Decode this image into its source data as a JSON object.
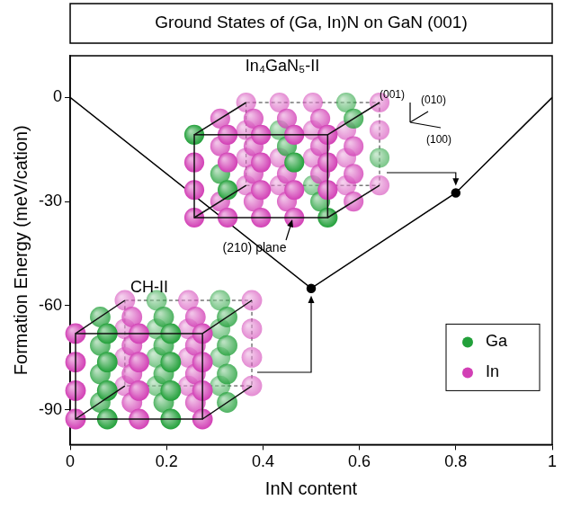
{
  "chart_data": {
    "type": "line",
    "title": "Ground States of (Ga, In)N on GaN (001)",
    "x_label": "InN content",
    "y_label": "Formation Energy (meV/cation)",
    "x": [
      0,
      0.5,
      0.8,
      1
    ],
    "values": [
      0,
      -55,
      -27.5,
      0
    ],
    "color": "#000000",
    "marker": "circle",
    "xlim": [
      0,
      1
    ],
    "xticks": [
      0,
      0.2,
      0.4,
      0.6,
      0.8,
      1
    ],
    "ylim": [
      -100,
      12
    ],
    "yticks": [
      0,
      -30,
      -60,
      -90
    ],
    "grid": false,
    "legend": "lower right",
    "legend_items": [
      {
        "name": "Ga",
        "color": "#22a03a"
      },
      {
        "name": "In",
        "color": "#d23fb5"
      }
    ],
    "annotations": [
      {
        "text": "CH-II",
        "x": 0.5,
        "y": -55
      },
      {
        "text": "In₄GaN₅-II",
        "x": 0.8,
        "y": -27.5
      }
    ],
    "labels": [
      "(210) plane",
      "(001)",
      "(010)",
      "(100)"
    ]
  }
}
